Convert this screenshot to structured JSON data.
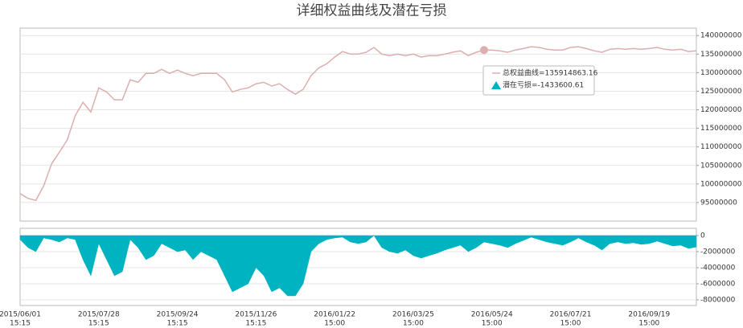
{
  "chart_data": [
    {
      "type": "line",
      "title": "详细权益曲线及潜在亏损",
      "series": [
        {
          "name": "总权益曲线=135914863.16",
          "color": "#dcafaf",
          "values": [
            97400000,
            96100000,
            95600000,
            99500000,
            105400000,
            108600000,
            111900000,
            118400000,
            122000000,
            119400000,
            125900000,
            124800000,
            122700000,
            122700000,
            128100000,
            127400000,
            129800000,
            129800000,
            130900000,
            129800000,
            130700000,
            129800000,
            129200000,
            129800000,
            129800000,
            129800000,
            128100000,
            124800000,
            125500000,
            125900000,
            127000000,
            127400000,
            126400000,
            127000000,
            125500000,
            124200000,
            125500000,
            129200000,
            131300000,
            132400000,
            134200000,
            135700000,
            135000000,
            135000000,
            135500000,
            136800000,
            135000000,
            134600000,
            135000000,
            134600000,
            135000000,
            134200000,
            134600000,
            134600000,
            135000000,
            135500000,
            135900000,
            134600000,
            135500000,
            136100000,
            136100000,
            135900000,
            135500000,
            136100000,
            136500000,
            137000000,
            136800000,
            136300000,
            136100000,
            136100000,
            136800000,
            137000000,
            136500000,
            135900000,
            135500000,
            136300000,
            136500000,
            136300000,
            136500000,
            136300000,
            136500000,
            136800000,
            136300000,
            136100000,
            136300000,
            135700000,
            135914863.16
          ]
        }
      ],
      "hover_index": 59,
      "ylim": [
        90000000,
        142000000
      ],
      "yticks": [
        95000000,
        100000000,
        105000000,
        110000000,
        115000000,
        120000000,
        125000000,
        130000000,
        135000000,
        140000000
      ],
      "grid": true
    },
    {
      "type": "area",
      "series": [
        {
          "name": "潜在亏损=-1433600.61",
          "color": "#00b3c0",
          "values": [
            -500000,
            -1500000,
            -2000000,
            -300000,
            -500000,
            -800000,
            -300000,
            -500000,
            -3000000,
            -5000000,
            -1000000,
            -3000000,
            -5000000,
            -4500000,
            -500000,
            -1500000,
            -3000000,
            -2500000,
            -1000000,
            -1500000,
            -2000000,
            -1800000,
            -3000000,
            -2000000,
            -2500000,
            -3000000,
            -5000000,
            -7000000,
            -6500000,
            -6000000,
            -4000000,
            -5000000,
            -7000000,
            -6500000,
            -7500000,
            -7500000,
            -6000000,
            -2000000,
            -1000000,
            -500000,
            -300000,
            -200000,
            -800000,
            -1000000,
            -800000,
            0,
            -1500000,
            -2000000,
            -2200000,
            -1800000,
            -2500000,
            -2800000,
            -2500000,
            -2200000,
            -1800000,
            -1500000,
            -1200000,
            -2000000,
            -1500000,
            -800000,
            -1000000,
            -1200000,
            -1500000,
            -1000000,
            -600000,
            -200000,
            -500000,
            -800000,
            -1000000,
            -1200000,
            -800000,
            -300000,
            -800000,
            -1200000,
            -1800000,
            -1000000,
            -800000,
            -1000000,
            -900000,
            -1100000,
            -1000000,
            -700000,
            -1000000,
            -1300000,
            -1200000,
            -1600000,
            -1433600.61
          ]
        }
      ],
      "categories": [
        "2015/06/01",
        null,
        null,
        null,
        null,
        null,
        null,
        null,
        null,
        null,
        "2015/07/28",
        null,
        null,
        null,
        null,
        null,
        null,
        null,
        null,
        null,
        "2015/09/24",
        null,
        null,
        null,
        null,
        null,
        null,
        null,
        null,
        null,
        "2015/11/26",
        null,
        null,
        null,
        null,
        null,
        null,
        null,
        null,
        null,
        "2016/01/22",
        null,
        null,
        null,
        null,
        null,
        null,
        null,
        null,
        null,
        "2016/03/25",
        null,
        null,
        null,
        null,
        null,
        null,
        null,
        null,
        null,
        "2016/05/24",
        null,
        null,
        null,
        null,
        null,
        null,
        null,
        null,
        null,
        "2016/07/21",
        null,
        null,
        null,
        null,
        null,
        null,
        null,
        null,
        null,
        "2016/09/19",
        null,
        null,
        null,
        null,
        null,
        null
      ],
      "category_times": [
        "15:15",
        null,
        null,
        null,
        null,
        null,
        null,
        null,
        null,
        null,
        "15:15",
        null,
        null,
        null,
        null,
        null,
        null,
        null,
        null,
        null,
        "15:15",
        null,
        null,
        null,
        null,
        null,
        null,
        null,
        null,
        null,
        "15:15",
        null,
        null,
        null,
        null,
        null,
        null,
        null,
        null,
        null,
        "15:00",
        null,
        null,
        null,
        null,
        null,
        null,
        null,
        null,
        null,
        "15:00",
        null,
        null,
        null,
        null,
        null,
        null,
        null,
        null,
        null,
        "15:00",
        null,
        null,
        null,
        null,
        null,
        null,
        null,
        null,
        null,
        "15:00",
        null,
        null,
        null,
        null,
        null,
        null,
        null,
        null,
        null,
        "15:00",
        null,
        null,
        null,
        null,
        null,
        null
      ],
      "ylim": [
        -8700000,
        900000
      ],
      "yticks": [
        0,
        -2000000,
        -4000000,
        -6000000,
        -8000000
      ],
      "grid": true
    }
  ]
}
